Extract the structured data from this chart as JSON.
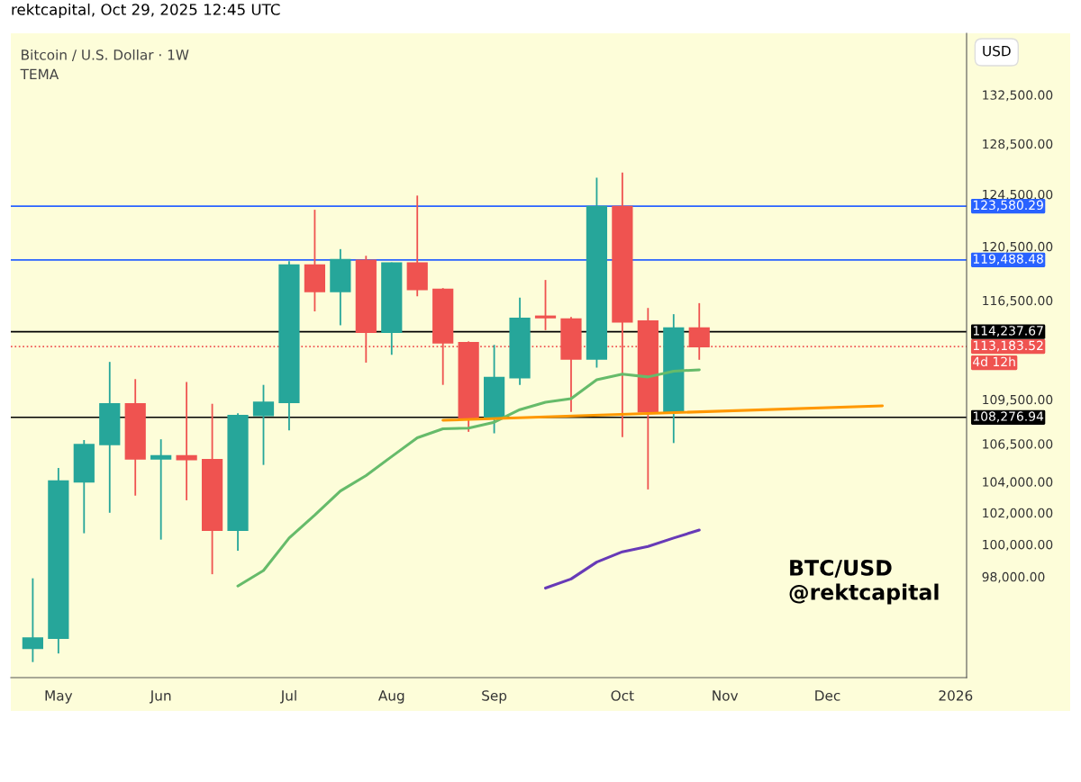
{
  "chart_data": {
    "type": "candlestick",
    "title": "rektcapital, Oct 29, 2025 12:45 UTC",
    "subtitle": "Bitcoin / U.S. Dollar · 1W",
    "x": [
      "2025-04-28",
      "2025-05-05",
      "2025-05-12",
      "2025-05-19",
      "2025-05-26",
      "2025-06-02",
      "2025-06-09",
      "2025-06-16",
      "2025-06-23",
      "2025-06-30",
      "2025-07-07",
      "2025-07-14",
      "2025-07-21",
      "2025-07-28",
      "2025-08-04",
      "2025-08-11",
      "2025-08-18",
      "2025-08-25",
      "2025-09-01",
      "2025-09-08",
      "2025-09-15",
      "2025-09-22",
      "2025-09-29",
      "2025-10-06",
      "2025-10-13",
      "2025-10-20",
      "2025-10-27"
    ],
    "ohlc": [
      [
        93700,
        97900,
        92900,
        94300
      ],
      [
        94300,
        104900,
        93400,
        104050
      ],
      [
        104000,
        106750,
        100700,
        106450
      ],
      [
        106450,
        112100,
        102000,
        109200
      ],
      [
        109200,
        110900,
        103100,
        105500
      ],
      [
        105500,
        106800,
        100300,
        105700
      ],
      [
        105700,
        110700,
        102800,
        105450
      ],
      [
        105450,
        109200,
        98150,
        100900
      ],
      [
        100900,
        108550,
        99600,
        108400
      ],
      [
        108400,
        110500,
        105100,
        109300
      ],
      [
        109300,
        119400,
        107400,
        119100
      ],
      [
        119100,
        123300,
        115700,
        117150
      ],
      [
        117150,
        120300,
        114700,
        119500
      ],
      [
        119450,
        119800,
        112050,
        114200
      ],
      [
        114200,
        119300,
        112600,
        119250
      ],
      [
        119250,
        124400,
        116800,
        117300
      ],
      [
        117300,
        117400,
        110500,
        113450
      ],
      [
        113450,
        113550,
        107300,
        108200
      ],
      [
        108200,
        113300,
        107200,
        111000
      ],
      [
        111000,
        116700,
        110500,
        115200
      ],
      [
        115350,
        118000,
        114350,
        115250
      ],
      [
        115150,
        115300,
        108650,
        112300
      ],
      [
        112300,
        125800,
        111700,
        123550
      ],
      [
        123550,
        126200,
        106950,
        114950
      ],
      [
        115000,
        115950,
        103500,
        108650
      ],
      [
        108650,
        115500,
        106550,
        114500
      ],
      [
        114500,
        116300,
        112250,
        113183.52
      ]
    ],
    "colors": [
      "#26a69a",
      "#26a69a",
      "#26a69a",
      "#26a69a",
      "#ef5350",
      "#26a69a",
      "#ef5350",
      "#ef5350",
      "#26a69a",
      "#26a69a",
      "#26a69a",
      "#ef5350",
      "#26a69a",
      "#ef5350",
      "#26a69a",
      "#ef5350",
      "#ef5350",
      "#ef5350",
      "#26a69a",
      "#26a69a",
      "#ef5350",
      "#ef5350",
      "#26a69a",
      "#ef5350",
      "#ef5350",
      "#26a69a",
      "#ef5350"
    ],
    "series": [
      {
        "type": "line",
        "color": "#66bb6a",
        "x": [
          "2025-06-23",
          "2025-06-30",
          "2025-07-07",
          "2025-07-14",
          "2025-07-21",
          "2025-07-28",
          "2025-08-04",
          "2025-08-11",
          "2025-08-18",
          "2025-08-25",
          "2025-09-01",
          "2025-09-08",
          "2025-09-15",
          "2025-09-22",
          "2025-09-29",
          "2025-10-06",
          "2025-10-13",
          "2025-10-20",
          "2025-10-27"
        ],
        "values": [
          97430,
          98380,
          100400,
          101850,
          103400,
          104400,
          105650,
          106900,
          107500,
          107550,
          107950,
          108800,
          109300,
          109550,
          110850,
          111250,
          111050,
          111450,
          111550
        ]
      },
      {
        "type": "line",
        "color": "#673ab7",
        "x": [
          "2025-09-15",
          "2025-09-22",
          "2025-09-29",
          "2025-10-06",
          "2025-10-13",
          "2025-10-20",
          "2025-10-27"
        ],
        "values": [
          97300,
          97860,
          98900,
          99540,
          99870,
          100400,
          100900
        ]
      },
      {
        "type": "line",
        "color": "#ff9800",
        "x": [
          "2025-08-18",
          "2025-12-16"
        ],
        "values": [
          108080,
          109060
        ]
      }
    ],
    "log": "y",
    "ylim": [
      92000,
      137700
    ],
    "yticks": [
      {
        "value": 98000,
        "label": "98,000.00"
      },
      {
        "value": 100000,
        "label": "100,000.00"
      },
      {
        "value": 102000,
        "label": "102,000.00"
      },
      {
        "value": 104000,
        "label": "104,000.00"
      },
      {
        "value": 106500,
        "label": "106,500.00"
      },
      {
        "value": 109500,
        "label": "109,500.00"
      },
      {
        "value": 116500,
        "label": "116,500.00"
      },
      {
        "value": 120500,
        "label": "120,500.00"
      },
      {
        "value": 124500,
        "label": "124,500.00"
      },
      {
        "value": 128500,
        "label": "128,500.00"
      },
      {
        "value": 132500,
        "label": "132,500.00"
      }
    ],
    "xlim": [
      "2025-04-22",
      "2026-01-08"
    ],
    "xticks": [
      {
        "value": "2025-05-05",
        "label": "May"
      },
      {
        "value": "2025-06-02",
        "label": "Jun"
      },
      {
        "value": "2025-07-07",
        "label": "Jul"
      },
      {
        "value": "2025-08-04",
        "label": "Aug"
      },
      {
        "value": "2025-09-01",
        "label": "Sep"
      },
      {
        "value": "2025-10-06",
        "label": "Oct"
      },
      {
        "value": "2025-11-03",
        "label": "Nov"
      },
      {
        "value": "2025-12-01",
        "label": "Dec"
      },
      {
        "value": "2026-01-05",
        "label": "2026"
      }
    ],
    "ref_lines": [
      {
        "axis": "y",
        "value": 123580.29,
        "label": "123,580.29",
        "color": "#2962ff",
        "line_style": "solid"
      },
      {
        "axis": "y",
        "value": 119488.48,
        "label": "119,488.48",
        "color": "#2962ff",
        "line_style": "solid"
      },
      {
        "axis": "y",
        "value": 114237.67,
        "label": "114,237.67",
        "color": "#000000",
        "line_style": "solid"
      },
      {
        "axis": "y",
        "value": 113183.52,
        "label": "113,183.52",
        "color": "#ef5350",
        "line_style": "dotted"
      },
      {
        "axis": "y",
        "value": 108276.94,
        "label": "108,276.94",
        "color": "#000000",
        "line_style": "solid"
      }
    ],
    "annotations": [
      "TEMA",
      "BTC/USD",
      "@rektcapital",
      "4d 12h",
      "USD"
    ],
    "grid": false,
    "legend": false
  }
}
